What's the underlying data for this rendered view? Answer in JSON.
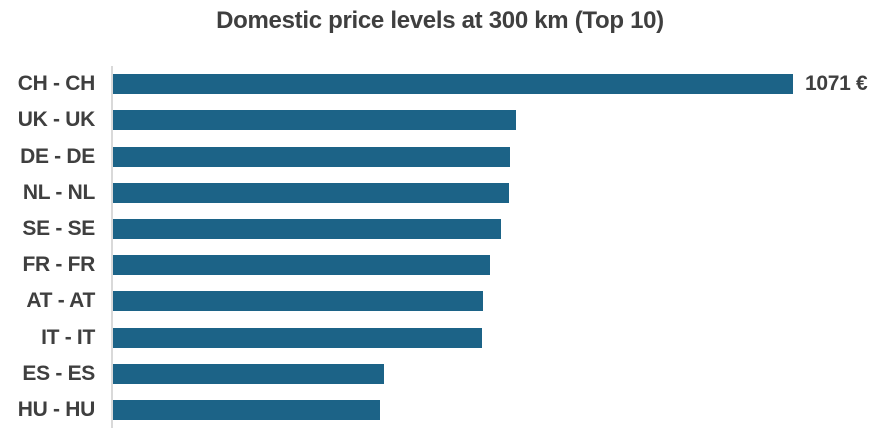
{
  "title": "Domestic price levels at 300 km (Top 10)",
  "chart_data": {
    "type": "bar",
    "orientation": "horizontal",
    "title": "Domestic price levels at 300 km (Top 10)",
    "xlabel": "",
    "ylabel": "",
    "unit": "EUR",
    "categories": [
      "CH - CH",
      "UK - UK",
      "DE - DE",
      "NL - NL",
      "SE - SE",
      "FR - FR",
      "AT - AT",
      "IT - IT",
      "ES - ES",
      "HU - HU"
    ],
    "values": [
      1071,
      635,
      625,
      624,
      611,
      594,
      583,
      581,
      427,
      421
    ],
    "data_labels": [
      "1071 €",
      "",
      "",
      "",
      "",
      "",
      "",
      "",
      "",
      ""
    ],
    "xlim": [
      0,
      1071
    ],
    "grid": false,
    "legend": "none",
    "colors": {
      "bar": "#1c6387",
      "axis_line": "#d9d9d9",
      "text": "#3f3f3f",
      "background": "#ffffff"
    }
  }
}
